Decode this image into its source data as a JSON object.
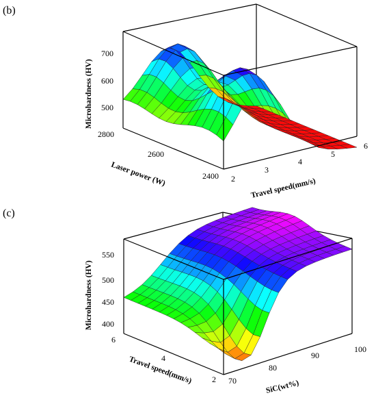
{
  "chart_data": [
    {
      "type": "surface",
      "panel": "(b)",
      "zlabel": "Microhardness (HV)",
      "ylabel": "Laser power (W)",
      "xlabel": "Travel speed(mm/s)",
      "z_ticks": [
        "500",
        "600",
        "700"
      ],
      "y_ticks": [
        "2800",
        "2600",
        "2400"
      ],
      "x_ticks": [
        "2",
        "3",
        "4",
        "5",
        "6"
      ],
      "zlim": [
        420,
        760
      ],
      "ylim": [
        2400,
        2800
      ],
      "xlim": [
        2,
        6
      ],
      "colormap": "hsv"
    },
    {
      "type": "surface",
      "panel": "(c)",
      "zlabel": "Microhardness (HV)",
      "ylabel": "Travel speed(mm/s)",
      "xlabel": "SiC(wt%)",
      "z_ticks": [
        "400",
        "450",
        "500",
        "550"
      ],
      "y_ticks": [
        "6",
        "4",
        "2"
      ],
      "x_ticks": [
        "70",
        "80",
        "90",
        "100"
      ],
      "zlim": [
        375,
        575
      ],
      "ylim": [
        2,
        6
      ],
      "xlim": [
        70,
        100
      ],
      "colormap": "hsv"
    }
  ]
}
